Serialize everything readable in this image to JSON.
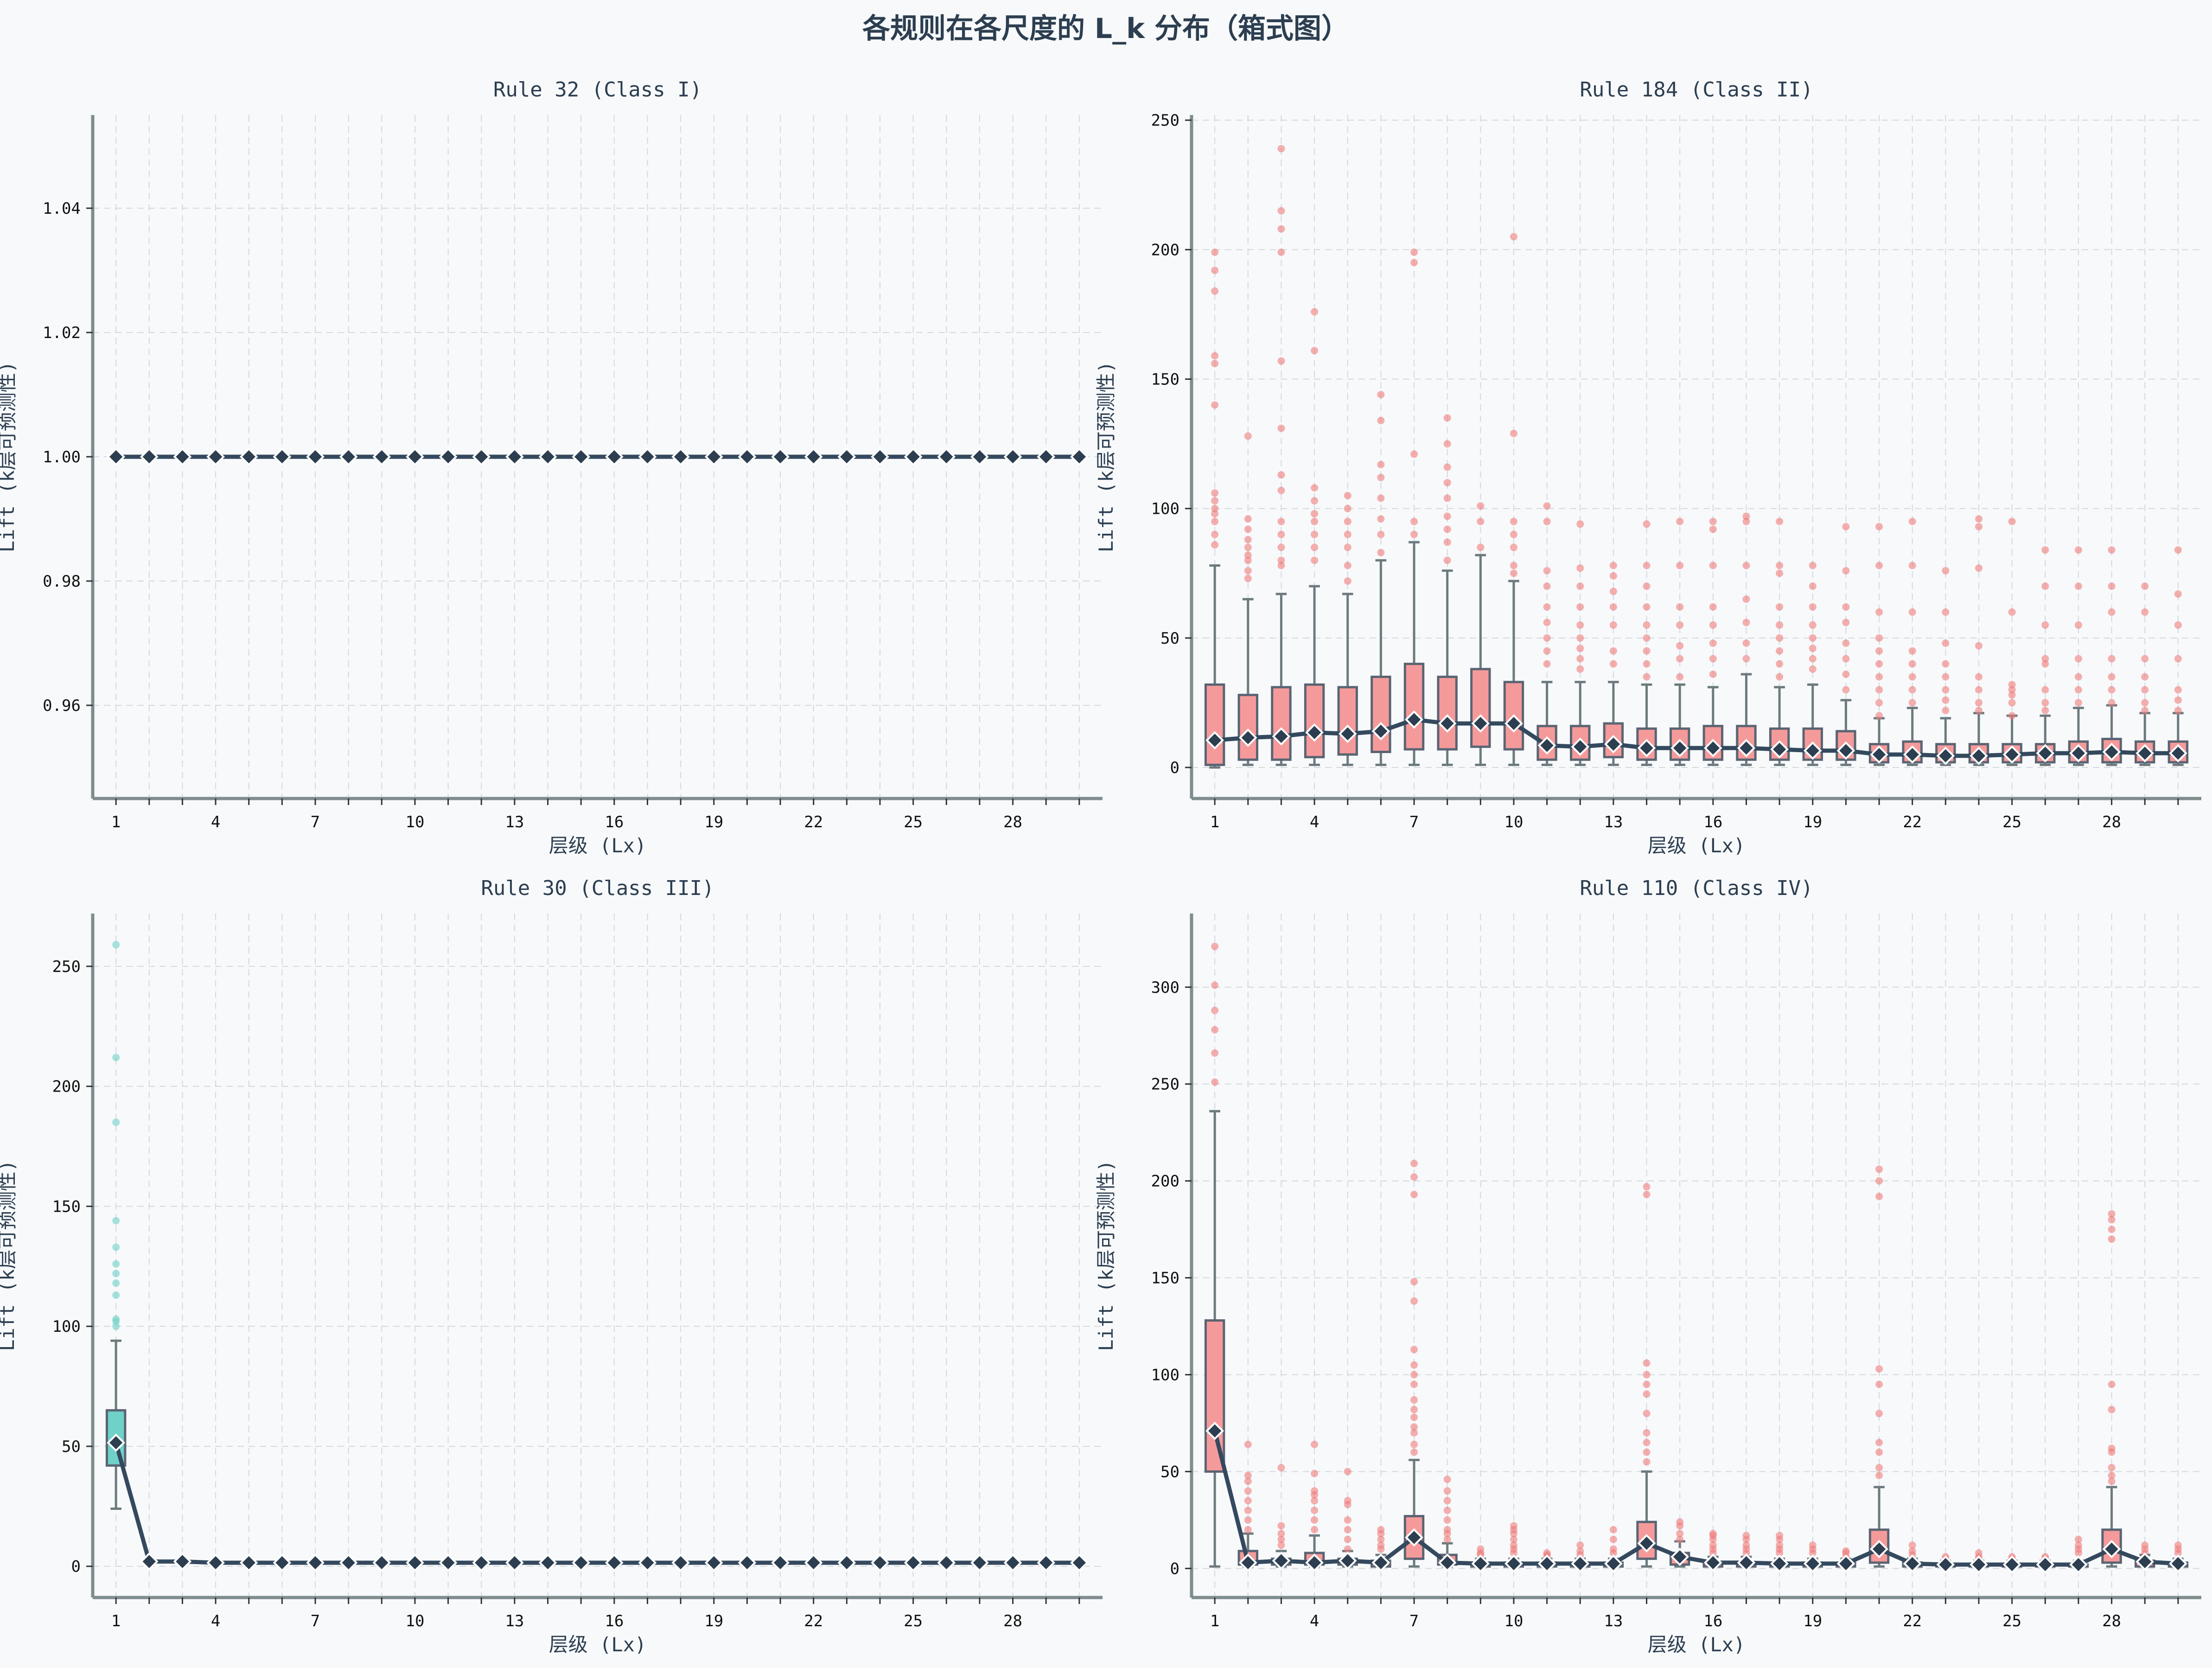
{
  "figure_title": "各规则在各尺度的 L_k 分布（箱式图）",
  "colors": {
    "background": "#f7f9fb",
    "axes": "#7f8c8d",
    "grid": "#d5d9dd",
    "mean_line": "#34495e",
    "mean_marker": "#2c3e50",
    "whisker": "#6c7a7d",
    "red_box": "#f59a9a",
    "red_outlier": "#f07b7b",
    "teal_box": "#6fd1c8",
    "teal_outlier": "#6fd1c8"
  },
  "chart_data": [
    {
      "type": "box",
      "title": "Rule 32 (Class I)",
      "xlabel": "层级 (Lx)",
      "ylabel": "Lift (k层可预测性)",
      "x": [
        1,
        2,
        3,
        4,
        5,
        6,
        7,
        8,
        9,
        10,
        11,
        12,
        13,
        14,
        15,
        16,
        17,
        18,
        19,
        20,
        21,
        22,
        23,
        24,
        25,
        26,
        27,
        28,
        29,
        30
      ],
      "xticks": [
        1,
        4,
        7,
        10,
        13,
        16,
        19,
        22,
        25,
        28
      ],
      "ylim": [
        0.945,
        1.055
      ],
      "yticks": [
        0.96,
        0.98,
        1.0,
        1.02,
        1.04
      ],
      "ytick_labels": [
        "0.96",
        "0.98",
        "1.00",
        "1.02",
        "1.04"
      ],
      "color": "red",
      "grid": true,
      "boxes": [],
      "means": [
        1,
        1,
        1,
        1,
        1,
        1,
        1,
        1,
        1,
        1,
        1,
        1,
        1,
        1,
        1,
        1,
        1,
        1,
        1,
        1,
        1,
        1,
        1,
        1,
        1,
        1,
        1,
        1,
        1,
        1
      ],
      "outliers": []
    },
    {
      "type": "box",
      "title": "Rule 184 (Class II)",
      "xlabel": "层级 (Lx)",
      "ylabel": "Lift (k层可预测性)",
      "x": [
        1,
        2,
        3,
        4,
        5,
        6,
        7,
        8,
        9,
        10,
        11,
        12,
        13,
        14,
        15,
        16,
        17,
        18,
        19,
        20,
        21,
        22,
        23,
        24,
        25,
        26,
        27,
        28,
        29,
        30
      ],
      "xticks": [
        1,
        4,
        7,
        10,
        13,
        16,
        19,
        22,
        25,
        28
      ],
      "ylim": [
        -12,
        252
      ],
      "yticks": [
        0,
        50,
        100,
        150,
        200,
        250
      ],
      "ytick_labels": [
        "0",
        "50",
        "100",
        "150",
        "200",
        "250"
      ],
      "color": "red",
      "grid": true,
      "boxes": [
        {
          "q1": 1,
          "q3": 32,
          "low": 0,
          "high": 78
        },
        {
          "q1": 3,
          "q3": 28,
          "low": 1,
          "high": 65
        },
        {
          "q1": 3,
          "q3": 31,
          "low": 1,
          "high": 67
        },
        {
          "q1": 4,
          "q3": 32,
          "low": 1,
          "high": 70
        },
        {
          "q1": 5,
          "q3": 31,
          "low": 1,
          "high": 67
        },
        {
          "q1": 6,
          "q3": 35,
          "low": 1,
          "high": 80
        },
        {
          "q1": 7,
          "q3": 40,
          "low": 1,
          "high": 87
        },
        {
          "q1": 7,
          "q3": 35,
          "low": 1,
          "high": 76
        },
        {
          "q1": 8,
          "q3": 38,
          "low": 1,
          "high": 82
        },
        {
          "q1": 7,
          "q3": 33,
          "low": 1,
          "high": 72
        },
        {
          "q1": 3,
          "q3": 16,
          "low": 1,
          "high": 33
        },
        {
          "q1": 3,
          "q3": 16,
          "low": 1,
          "high": 33
        },
        {
          "q1": 4,
          "q3": 17,
          "low": 1,
          "high": 33
        },
        {
          "q1": 3,
          "q3": 15,
          "low": 1,
          "high": 32
        },
        {
          "q1": 3,
          "q3": 15,
          "low": 1,
          "high": 32
        },
        {
          "q1": 3,
          "q3": 16,
          "low": 1,
          "high": 31
        },
        {
          "q1": 3,
          "q3": 16,
          "low": 1,
          "high": 36
        },
        {
          "q1": 3,
          "q3": 15,
          "low": 1,
          "high": 31
        },
        {
          "q1": 3,
          "q3": 15,
          "low": 1,
          "high": 32
        },
        {
          "q1": 3,
          "q3": 14,
          "low": 1,
          "high": 26
        },
        {
          "q1": 2,
          "q3": 9,
          "low": 1,
          "high": 19
        },
        {
          "q1": 2,
          "q3": 10,
          "low": 1,
          "high": 23
        },
        {
          "q1": 2,
          "q3": 9,
          "low": 1,
          "high": 19
        },
        {
          "q1": 2,
          "q3": 9,
          "low": 1,
          "high": 21
        },
        {
          "q1": 2,
          "q3": 9,
          "low": 1,
          "high": 20
        },
        {
          "q1": 2,
          "q3": 9,
          "low": 1,
          "high": 20
        },
        {
          "q1": 2,
          "q3": 10,
          "low": 1,
          "high": 23
        },
        {
          "q1": 2,
          "q3": 11,
          "low": 1,
          "high": 24
        },
        {
          "q1": 2,
          "q3": 10,
          "low": 1,
          "high": 21
        },
        {
          "q1": 2,
          "q3": 10,
          "low": 1,
          "high": 21
        }
      ],
      "means": [
        10.5,
        11.5,
        12,
        13.5,
        13,
        14,
        18.5,
        17,
        17,
        17,
        8.5,
        8,
        9,
        7.5,
        7.5,
        7.5,
        7.5,
        7,
        6.5,
        6.5,
        5,
        5,
        4.5,
        4.5,
        5,
        5.5,
        5.5,
        6,
        5.5,
        5.5
      ],
      "outliers": [
        [
          86,
          90,
          95,
          98,
          100,
          103,
          106,
          140,
          156,
          159,
          184,
          192,
          199
        ],
        [
          73,
          76,
          80,
          82,
          85,
          88,
          92,
          96,
          128
        ],
        [
          78,
          80,
          85,
          90,
          95,
          107,
          113,
          131,
          157,
          199,
          208,
          215,
          239
        ],
        [
          80,
          85,
          90,
          95,
          98,
          103,
          108,
          161,
          176
        ],
        [
          72,
          78,
          85,
          90,
          95,
          100,
          105
        ],
        [
          83,
          90,
          96,
          104,
          112,
          117,
          134,
          144
        ],
        [
          90,
          95,
          121,
          195,
          199
        ],
        [
          80,
          87,
          92,
          97,
          104,
          110,
          116,
          125,
          135
        ],
        [
          85,
          95,
          101
        ],
        [
          75,
          78,
          85,
          90,
          95,
          129,
          205
        ],
        [
          40,
          45,
          50,
          56,
          62,
          70,
          76,
          95,
          101
        ],
        [
          38,
          42,
          46,
          50,
          55,
          62,
          70,
          77,
          94
        ],
        [
          40,
          45,
          55,
          62,
          68,
          74,
          78
        ],
        [
          35,
          40,
          45,
          50,
          55,
          62,
          70,
          78,
          94
        ],
        [
          35,
          42,
          47,
          55,
          62,
          78,
          95
        ],
        [
          36,
          42,
          48,
          55,
          62,
          78,
          92,
          95
        ],
        [
          42,
          48,
          56,
          65,
          78,
          95,
          97
        ],
        [
          35,
          40,
          45,
          50,
          55,
          62,
          75,
          78,
          95
        ],
        [
          38,
          42,
          46,
          50,
          55,
          62,
          70,
          78
        ],
        [
          30,
          36,
          42,
          48,
          56,
          62,
          76,
          93
        ],
        [
          20,
          25,
          30,
          35,
          40,
          45,
          50,
          60,
          78,
          93
        ],
        [
          25,
          30,
          35,
          40,
          45,
          60,
          78,
          95
        ],
        [
          22,
          26,
          30,
          35,
          40,
          48,
          60,
          76
        ],
        [
          22,
          25,
          30,
          35,
          47,
          77,
          93,
          96
        ],
        [
          20,
          25,
          28,
          30,
          32,
          60,
          95
        ],
        [
          22,
          25,
          30,
          40,
          42,
          55,
          70,
          84
        ],
        [
          25,
          30,
          35,
          42,
          55,
          70,
          84
        ],
        [
          25,
          30,
          35,
          42,
          60,
          70,
          84
        ],
        [
          22,
          25,
          30,
          35,
          42,
          60,
          70
        ],
        [
          22,
          26,
          30,
          42,
          55,
          67,
          84
        ]
      ]
    },
    {
      "type": "box",
      "title": "Rule 30 (Class III)",
      "xlabel": "层级 (Lx)",
      "ylabel": "Lift (k层可预测性)",
      "x": [
        1,
        2,
        3,
        4,
        5,
        6,
        7,
        8,
        9,
        10,
        11,
        12,
        13,
        14,
        15,
        16,
        17,
        18,
        19,
        20,
        21,
        22,
        23,
        24,
        25,
        26,
        27,
        28,
        29,
        30
      ],
      "xticks": [
        1,
        4,
        7,
        10,
        13,
        16,
        19,
        22,
        25,
        28
      ],
      "ylim": [
        -13,
        272
      ],
      "yticks": [
        0,
        50,
        100,
        150,
        200,
        250
      ],
      "ytick_labels": [
        "0",
        "50",
        "100",
        "150",
        "200",
        "250"
      ],
      "color": "teal",
      "grid": true,
      "boxes": [
        {
          "q1": 42,
          "q3": 65,
          "low": 24,
          "high": 94
        }
      ],
      "means": [
        51.5,
        2,
        2,
        1.5,
        1.5,
        1.5,
        1.5,
        1.5,
        1.5,
        1.5,
        1.5,
        1.5,
        1.5,
        1.5,
        1.5,
        1.5,
        1.5,
        1.5,
        1.5,
        1.5,
        1.5,
        1.5,
        1.5,
        1.5,
        1.5,
        1.5,
        1.5,
        1.5,
        1.5,
        1.5
      ],
      "outliers": [
        [
          100,
          102,
          103,
          113,
          118,
          122,
          126,
          133,
          144,
          185,
          212,
          259
        ]
      ]
    },
    {
      "type": "box",
      "title": "Rule 110 (Class IV)",
      "xlabel": "层级 (Lx)",
      "ylabel": "Lift (k层可预测性)",
      "x": [
        1,
        2,
        3,
        4,
        5,
        6,
        7,
        8,
        9,
        10,
        11,
        12,
        13,
        14,
        15,
        16,
        17,
        18,
        19,
        20,
        21,
        22,
        23,
        24,
        25,
        26,
        27,
        28,
        29,
        30
      ],
      "xticks": [
        1,
        4,
        7,
        10,
        13,
        16,
        19,
        22,
        25,
        28
      ],
      "ylim": [
        -15,
        338
      ],
      "yticks": [
        0,
        50,
        100,
        150,
        200,
        250,
        300
      ],
      "ytick_labels": [
        "0",
        "50",
        "100",
        "150",
        "200",
        "250",
        "300"
      ],
      "color": "red",
      "grid": true,
      "boxes": [
        {
          "q1": 50,
          "q3": 128,
          "low": 1,
          "high": 236
        },
        {
          "q1": 2,
          "q3": 9,
          "low": 1,
          "high": 18
        },
        {
          "q1": 2,
          "q3": 5,
          "low": 1,
          "high": 9
        },
        {
          "q1": 2,
          "q3": 8,
          "low": 1,
          "high": 17
        },
        {
          "q1": 2,
          "q3": 5,
          "low": 1,
          "high": 9
        },
        {
          "q1": 1,
          "q3": 4,
          "low": 1,
          "high": 7
        },
        {
          "q1": 5,
          "q3": 27,
          "low": 1,
          "high": 56
        },
        {
          "q1": 2,
          "q3": 7,
          "low": 1,
          "high": 13
        },
        {
          "q1": 1,
          "q3": 3,
          "low": 1,
          "high": 5
        },
        {
          "q1": 1,
          "q3": 3,
          "low": 1,
          "high": 5
        },
        {
          "q1": 1,
          "q3": 3,
          "low": 1,
          "high": 5
        },
        {
          "q1": 1,
          "q3": 3,
          "low": 1,
          "high": 5
        },
        {
          "q1": 1,
          "q3": 3,
          "low": 1,
          "high": 5
        },
        {
          "q1": 5,
          "q3": 24,
          "low": 1,
          "high": 50
        },
        {
          "q1": 2,
          "q3": 8,
          "low": 1,
          "high": 14
        },
        {
          "q1": 1,
          "q3": 3,
          "low": 1,
          "high": 6
        },
        {
          "q1": 1,
          "q3": 3,
          "low": 1,
          "high": 6
        },
        {
          "q1": 1,
          "q3": 3,
          "low": 1,
          "high": 5
        },
        {
          "q1": 1,
          "q3": 3,
          "low": 1,
          "high": 5
        },
        {
          "q1": 1,
          "q3": 3,
          "low": 1,
          "high": 5
        },
        {
          "q1": 3,
          "q3": 20,
          "low": 1,
          "high": 42
        },
        {
          "q1": 1,
          "q3": 3,
          "low": 1,
          "high": 5
        },
        {
          "q1": 1,
          "q3": 2,
          "low": 1,
          "high": 4
        },
        {
          "q1": 1,
          "q3": 2,
          "low": 1,
          "high": 4
        },
        {
          "q1": 1,
          "q3": 2,
          "low": 1,
          "high": 4
        },
        {
          "q1": 1,
          "q3": 2,
          "low": 1,
          "high": 4
        },
        {
          "q1": 1,
          "q3": 2,
          "low": 1,
          "high": 4
        },
        {
          "q1": 3,
          "q3": 20,
          "low": 1,
          "high": 42
        },
        {
          "q1": 1,
          "q3": 4,
          "low": 1,
          "high": 7
        },
        {
          "q1": 1,
          "q3": 3,
          "low": 1,
          "high": 5
        }
      ],
      "means": [
        71,
        3,
        4,
        3,
        4,
        3,
        16,
        3,
        2.5,
        2.5,
        2.5,
        2.5,
        2.5,
        13,
        6,
        3,
        3,
        2.5,
        2.5,
        2.5,
        10,
        2.5,
        2,
        2,
        2,
        2,
        2,
        10,
        3.5,
        2.5
      ],
      "outliers": [
        [
          251,
          266,
          278,
          288,
          301,
          321
        ],
        [
          20,
          25,
          30,
          35,
          40,
          45,
          48,
          64
        ],
        [
          12,
          15,
          18,
          22,
          52
        ],
        [
          20,
          25,
          30,
          35,
          38,
          40,
          49,
          64
        ],
        [
          10,
          15,
          20,
          25,
          33,
          35,
          50
        ],
        [
          10,
          12,
          15,
          18,
          20
        ],
        [
          60,
          64,
          70,
          73,
          78,
          82,
          87,
          95,
          100,
          105,
          113,
          138,
          148,
          193,
          202,
          209
        ],
        [
          15,
          18,
          20,
          25,
          30,
          35,
          40,
          46
        ],
        [
          7,
          8,
          10
        ],
        [
          8,
          10,
          12,
          15,
          18,
          20,
          22
        ],
        [
          6,
          7,
          8
        ],
        [
          7,
          9,
          12
        ],
        [
          8,
          10,
          15,
          20
        ],
        [
          55,
          60,
          65,
          70,
          80,
          90,
          95,
          100,
          106,
          193,
          197
        ],
        [
          15,
          18,
          22,
          24
        ],
        [
          8,
          10,
          12,
          15,
          17,
          18
        ],
        [
          8,
          10,
          12,
          15,
          17
        ],
        [
          8,
          10,
          12,
          15,
          17
        ],
        [
          8,
          10,
          12
        ],
        [
          6,
          8,
          9
        ],
        [
          48,
          52,
          60,
          65,
          80,
          95,
          103,
          192,
          200,
          206
        ],
        [
          7,
          9,
          12
        ],
        [
          5,
          6
        ],
        [
          5,
          6,
          8
        ],
        [
          5,
          6
        ],
        [
          5,
          6
        ],
        [
          8,
          10,
          12,
          15
        ],
        [
          45,
          48,
          52,
          60,
          62,
          82,
          95,
          170,
          175,
          180,
          183
        ],
        [
          8,
          10,
          12
        ],
        [
          8,
          10,
          12
        ]
      ]
    }
  ]
}
